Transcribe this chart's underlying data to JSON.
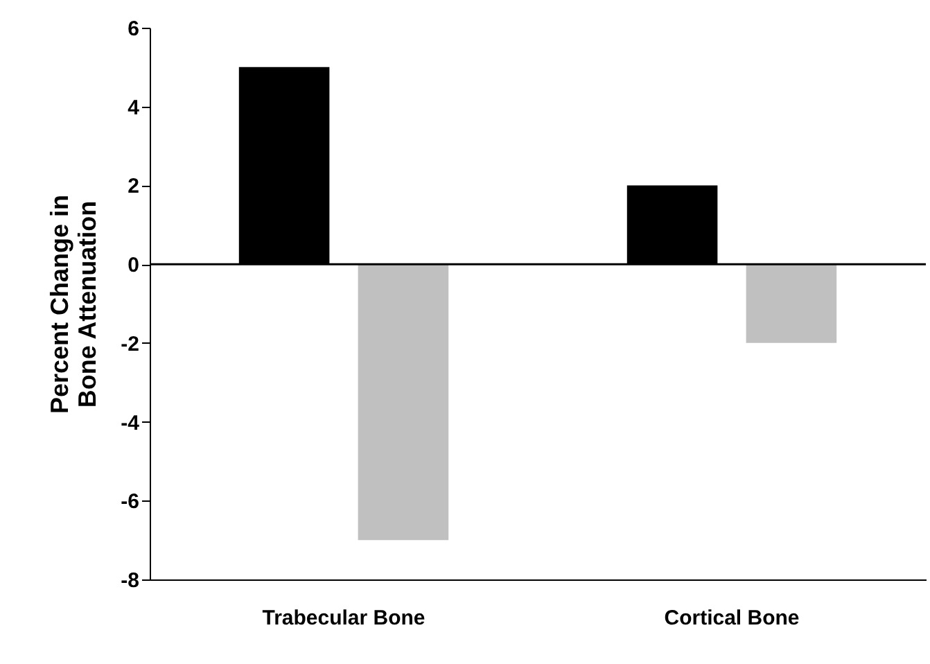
{
  "chart_data": {
    "type": "bar",
    "ylabel": "Percent Change in Bone Attenuation",
    "categories": [
      "Trabecular Bone",
      "Cortical Bone"
    ],
    "series": [
      {
        "color": "#000000",
        "values": [
          5,
          2
        ]
      },
      {
        "color": "#c0c0c0",
        "values": [
          -7,
          -2
        ]
      }
    ],
    "ylim": [
      -8,
      6
    ],
    "yticks": [
      -8,
      -6,
      -4,
      -2,
      0,
      2,
      4,
      6
    ],
    "grid": false,
    "legend": false,
    "ref_lines": [
      {
        "axis": "y",
        "value": 0
      }
    ]
  }
}
